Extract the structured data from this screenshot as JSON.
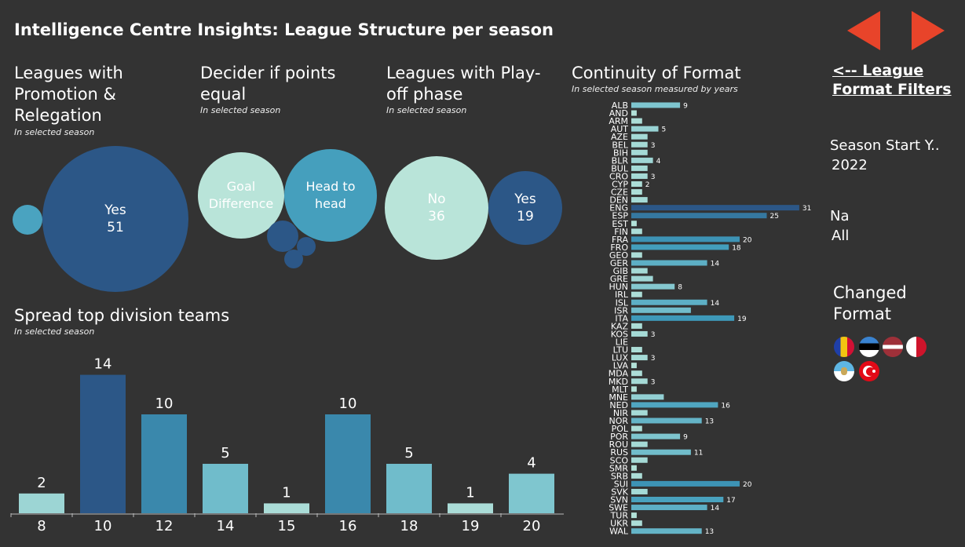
{
  "title": "Intelligence Centre Insights: League Structure per season",
  "promotion": {
    "heading": "Leagues with Promotion & Relegation",
    "subtitle": "In selected season",
    "yes_label": "Yes",
    "yes_value": "51"
  },
  "decider": {
    "heading": "Decider if points equal",
    "subtitle": "In selected season",
    "goal_diff": "Goal Difference",
    "head_to_head": "Head to head"
  },
  "playoff": {
    "heading": "Leagues with Play-off phase",
    "subtitle": "In selected season",
    "no_label": "No",
    "no_value": "36",
    "yes_label": "Yes",
    "yes_value": "19"
  },
  "colors": {
    "background": "#333333",
    "dark_blue": "#2c5787",
    "teal": "#3f9bbb",
    "light_mint": "#b9e4d9",
    "arrow": "#e8442a"
  },
  "right_panel": {
    "filters_link": "<-- League Format Filters",
    "season_label": "Season Start Y..",
    "season_value": "2022",
    "na_label": "Na",
    "na_value": "All",
    "changed_format": "Changed Format",
    "flags": [
      "andorra-flag",
      "estonia-flag",
      "latvia-flag",
      "malta-flag",
      "san-marino-flag",
      "turkey-flag"
    ]
  },
  "chart_data": [
    {
      "type": "bar",
      "title": "Spread top division teams",
      "subtitle": "In selected season",
      "categories": [
        "8",
        "10",
        "12",
        "14",
        "15",
        "16",
        "18",
        "19",
        "20"
      ],
      "values": [
        2,
        14,
        10,
        5,
        1,
        10,
        5,
        1,
        4
      ]
    },
    {
      "type": "bar",
      "orientation": "horizontal",
      "title": "Continuity of Format",
      "subtitle": "In selected season measured by years",
      "categories": [
        "ALB",
        "AND",
        "ARM",
        "AUT",
        "AZE",
        "BEL",
        "BIH",
        "BLR",
        "BUL",
        "CRO",
        "CYP",
        "CZE",
        "DEN",
        "ENG",
        "ESP",
        "EST",
        "FIN",
        "FRA",
        "FRO",
        "GEO",
        "GER",
        "GIB",
        "GRE",
        "HUN",
        "IRL",
        "ISL",
        "ISR",
        "ITA",
        "KAZ",
        "KOS",
        "LIE",
        "LTU",
        "LUX",
        "LVA",
        "MDA",
        "MKD",
        "MLT",
        "MNE",
        "NED",
        "NIR",
        "NOR",
        "POL",
        "POR",
        "ROU",
        "RUS",
        "SCO",
        "SMR",
        "SRB",
        "SUI",
        "SVK",
        "SVN",
        "SWE",
        "TUR",
        "UKR",
        "WAL"
      ],
      "values": [
        9,
        1,
        2,
        5,
        3,
        3,
        3,
        4,
        3,
        3,
        2,
        2,
        3,
        31,
        25,
        1,
        2,
        20,
        18,
        2,
        14,
        3,
        4,
        8,
        2,
        14,
        11,
        19,
        2,
        3,
        0,
        2,
        3,
        1,
        2,
        3,
        1,
        6,
        16,
        3,
        13,
        2,
        9,
        3,
        11,
        3,
        1,
        2,
        20,
        3,
        17,
        14,
        1,
        2,
        13
      ],
      "labels": {
        "ALB": 9,
        "AUT": 5,
        "BEL": 3,
        "BLR": 4,
        "CRO": 3,
        "CYP": 2,
        "ENG": 31,
        "ESP": 25,
        "FRA": 20,
        "FRO": 18,
        "GER": 14,
        "HUN": 8,
        "ISL": 14,
        "ITA": 19,
        "KOS": 3,
        "LUX": 3,
        "MKD": 3,
        "NED": 16,
        "NOR": 13,
        "POR": 9,
        "RUS": 11,
        "SUI": 20,
        "SVN": 17,
        "SWE": 14,
        "WAL": 13
      }
    }
  ]
}
